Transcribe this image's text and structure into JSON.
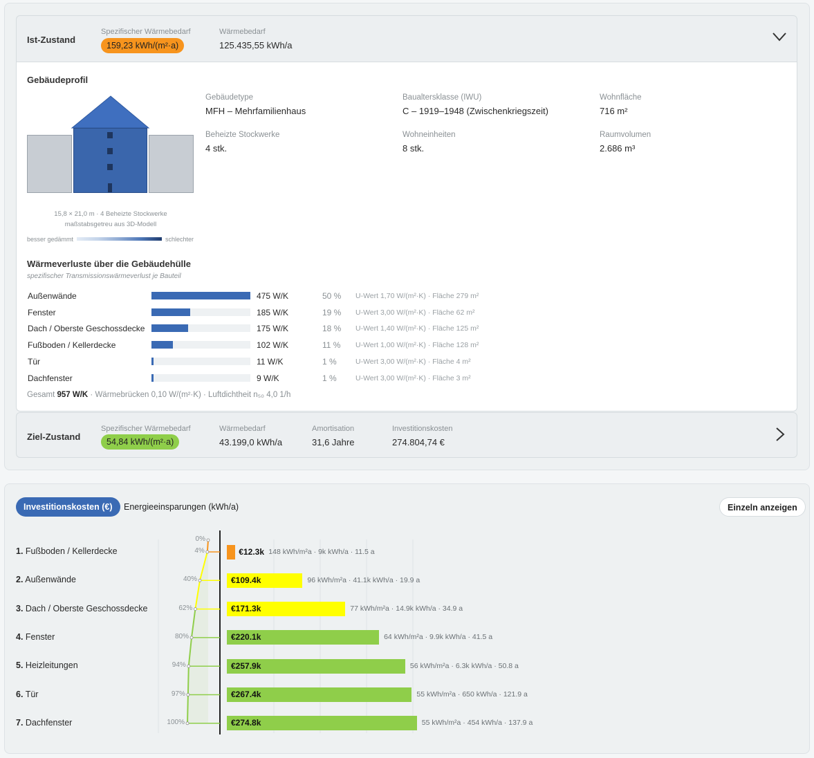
{
  "ist": {
    "title": "Ist-Zustand",
    "spez_label": "Spezifischer Wärmebedarf",
    "spez_value": "159,23 kWh/(m²·a)",
    "waerme_label": "Wärmebedarf",
    "waerme_value": "125.435,55 kWh/a",
    "expanded_icon": "chevron-down-icon"
  },
  "profil": {
    "title": "Gebäudeprofil",
    "fields": [
      {
        "label": "Gebäudetype",
        "value": "MFH – Mehrfamilienhaus"
      },
      {
        "label": "Baualtersklasse (IWU)",
        "value": "C – 1919–1948 (Zwischenkriegszeit)"
      },
      {
        "label": "Wohnfläche",
        "value": "716 m²"
      },
      {
        "label": "Beheizte Stockwerke",
        "value": "4 stk."
      },
      {
        "label": "Wohneinheiten",
        "value": "8 stk."
      },
      {
        "label": "Raumvolumen",
        "value": "2.686 m³"
      }
    ],
    "caption_line1": "15,8 × 21,0 m · 4 Beheizte Stockwerke",
    "caption_line2": "maßstabsgetreu aus 3D-Modell",
    "legend_left": "besser gedämmt",
    "legend_right": "schlechter"
  },
  "verluste": {
    "title": "Wärmeverluste über die Gebäudehülle",
    "subtitle": "spezifischer Transmissionswärmeverlust je Bauteil",
    "rows": [
      {
        "name": "Außenwände",
        "wk": "475 W/K",
        "value": 475,
        "pct": "50 %",
        "detail": "U-Wert 1,70 W/(m²·K) · Fläche 279 m²"
      },
      {
        "name": "Fenster",
        "wk": "185 W/K",
        "value": 185,
        "pct": "19 %",
        "detail": "U-Wert 3,00 W/(m²·K) · Fläche 62 m²"
      },
      {
        "name": "Dach / Oberste Geschossdecke",
        "wk": "175 W/K",
        "value": 175,
        "pct": "18 %",
        "detail": "U-Wert 1,40 W/(m²·K) · Fläche 125 m²"
      },
      {
        "name": "Fußboden / Kellerdecke",
        "wk": "102 W/K",
        "value": 102,
        "pct": "11 %",
        "detail": "U-Wert 1,00 W/(m²·K) · Fläche 128 m²"
      },
      {
        "name": "Tür",
        "wk": "11 W/K",
        "value": 11,
        "pct": "1 %",
        "detail": "U-Wert 3,00 W/(m²·K) · Fläche 4 m²"
      },
      {
        "name": "Dachfenster",
        "wk": "9 W/K",
        "value": 9,
        "pct": "1 %",
        "detail": "U-Wert 3,00 W/(m²·K) · Fläche 3 m²"
      }
    ],
    "gesamt_prefix": "Gesamt",
    "gesamt_value": "957 W/K",
    "gesamt_suffix": "· Wärmebrücken 0,10 W/(m²·K) · Luftdichtheit n₅₀ 4,0 1/h"
  },
  "ziel": {
    "title": "Ziel-Zustand",
    "spez_label": "Spezifischer Wärmebedarf",
    "spez_value": "54,84 kWh/(m²·a)",
    "waerme_label": "Wärmebedarf",
    "waerme_value": "43.199,0 kWh/a",
    "amort_label": "Amortisation",
    "amort_value": "31,6 Jahre",
    "invest_label": "Investitionskosten",
    "invest_value": "274.804,74 €",
    "collapsed_icon": "chevron-right-icon"
  },
  "tabs": {
    "invest": "Investitionskosten (€)",
    "energie": "Energieeinsparungen (kWh/a)",
    "einzeln": "Einzeln anzeigen"
  },
  "colors": {
    "accent_blue": "#3a6ab4",
    "orange": "#f7941d",
    "yellow": "#ffff00",
    "green": "#8fce4a"
  },
  "chart_data": {
    "type": "bar",
    "categories": [
      "Fußboden / Kellerdecke",
      "Außenwände",
      "Dach / Oberste Geschossdecke",
      "Fenster",
      "Heizleitungen",
      "Tür",
      "Dachfenster"
    ],
    "numbers": [
      "1.",
      "2.",
      "3.",
      "4.",
      "5.",
      "6.",
      "7."
    ],
    "values": [
      12.3,
      109.4,
      171.3,
      220.1,
      257.9,
      267.4,
      274.8
    ],
    "value_labels": [
      "€12.3k",
      "€109.4k",
      "€171.3k",
      "€220.1k",
      "€257.9k",
      "€267.4k",
      "€274.8k"
    ],
    "details": [
      "148 kWh/m²a · 9k kWh/a · 11.5 a",
      "96 kWh/m²a · 41.1k kWh/a · 19.9 a",
      "77 kWh/m²a · 14.9k kWh/a · 34.9 a",
      "64 kWh/m²a · 9.9k kWh/a · 41.5 a",
      "56 kWh/m²a · 6.3k kWh/a · 50.8 a",
      "55 kWh/m²a · 650 kWh/a · 121.9 a",
      "55 kWh/m²a · 454 kWh/a · 137.9 a"
    ],
    "bar_colors": [
      "orange",
      "yellow",
      "yellow",
      "green",
      "green",
      "green",
      "green"
    ],
    "cumulative_labels": [
      "0%",
      "4%",
      "40%",
      "62%",
      "80%",
      "94%",
      "97%",
      "100%"
    ],
    "cumulative": [
      0,
      4,
      40,
      62,
      80,
      94,
      97,
      100
    ],
    "xlim": [
      0,
      400
    ]
  }
}
